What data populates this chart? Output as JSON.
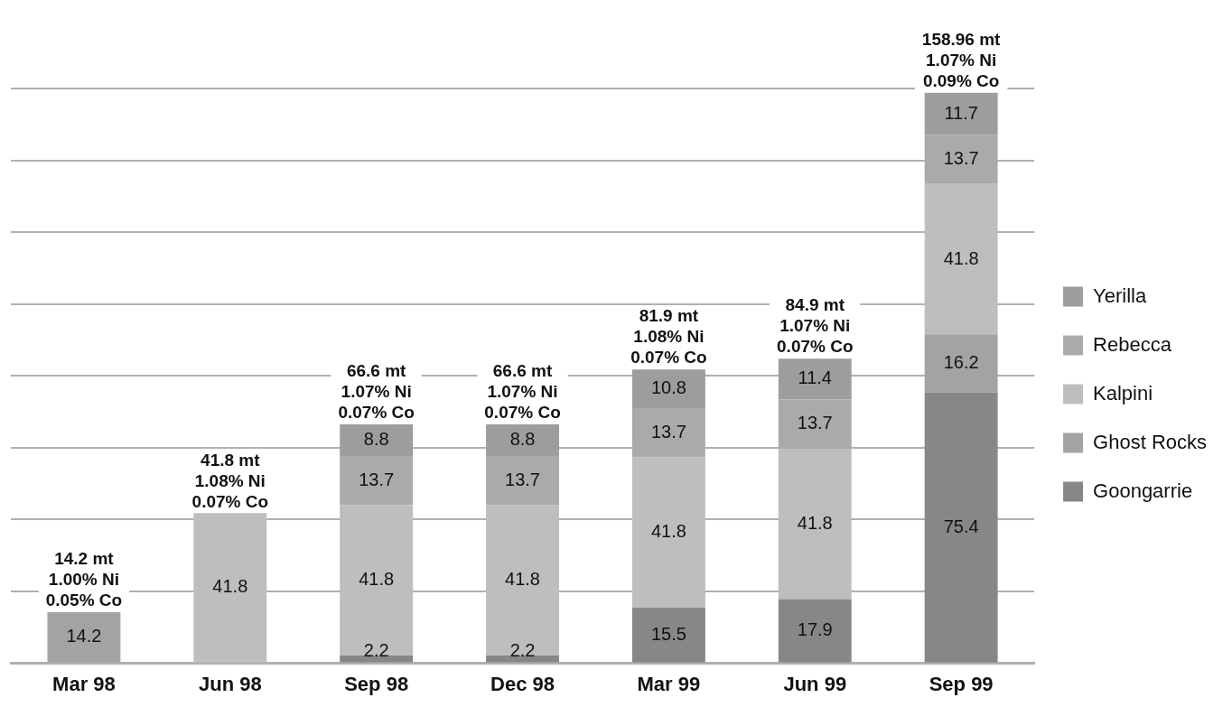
{
  "chart_data": {
    "type": "bar",
    "stacked": true,
    "categories": [
      "Mar 98",
      "Jun 98",
      "Sep 98",
      "Dec 98",
      "Mar 99",
      "Jun 99",
      "Sep 99"
    ],
    "series": [
      {
        "name": "Goongarrie",
        "color": "#878787",
        "values": [
          null,
          null,
          2.2,
          2.2,
          15.5,
          17.9,
          75.4
        ]
      },
      {
        "name": "Ghost Rocks",
        "color": "#a3a3a3",
        "values": [
          14.2,
          null,
          null,
          null,
          null,
          null,
          16.2
        ]
      },
      {
        "name": "Kalpini",
        "color": "#bebebe",
        "values": [
          null,
          41.8,
          41.8,
          41.8,
          41.8,
          41.8,
          41.8
        ]
      },
      {
        "name": "Rebecca",
        "color": "#aaaaaa",
        "values": [
          null,
          null,
          13.7,
          13.7,
          13.7,
          13.7,
          13.7
        ]
      },
      {
        "name": "Yerilla",
        "color": "#9d9d9d",
        "values": [
          null,
          null,
          8.8,
          8.8,
          10.8,
          11.4,
          11.7
        ]
      }
    ],
    "totals": [
      "14.2 mt\n1.00% Ni\n0.05% Co",
      "41.8 mt\n1.08% Ni\n0.07% Co",
      "66.6 mt\n1.07% Ni\n0.07% Co",
      "66.6 mt\n1.07% Ni\n0.07% Co",
      "81.9 mt\n1.08% Ni\n0.07% Co",
      "84.9 mt\n1.07% Ni\n0.07% Co",
      "158.96 mt\n1.07% Ni\n0.09% Co"
    ],
    "data_labels": true,
    "ylim": [
      0,
      160
    ],
    "yticks": [
      {
        "value": 0,
        "label": null
      },
      {
        "value": 20,
        "label": null
      },
      {
        "value": 40,
        "label": null
      },
      {
        "value": 60,
        "label": null
      },
      {
        "value": 80,
        "label": null
      },
      {
        "value": 100,
        "label": null
      },
      {
        "value": 120,
        "label": null
      },
      {
        "value": 140,
        "label": null
      },
      {
        "value": 160,
        "label": null
      }
    ],
    "tick_labels": "x",
    "grid": "y",
    "legend": "right"
  }
}
